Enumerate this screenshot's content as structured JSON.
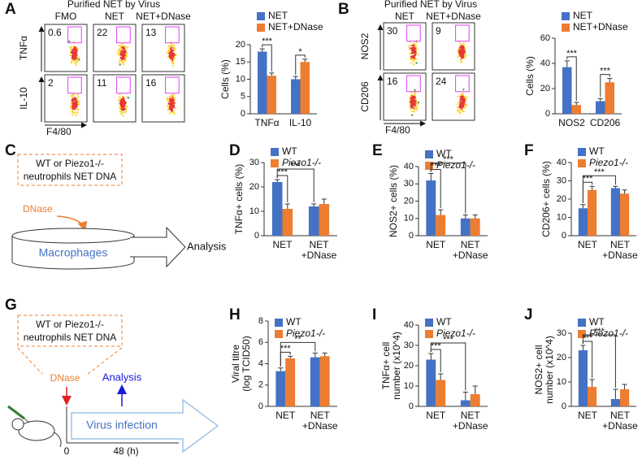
{
  "panel_labels": [
    "A",
    "B",
    "C",
    "D",
    "E",
    "F",
    "G",
    "H",
    "I",
    "J"
  ],
  "flow_panels": [
    {
      "title": "Purified NET by Virus",
      "columns": [
        "FMO",
        "NET",
        "NET+DNase"
      ],
      "rows": [
        "TNFα",
        "IL-10"
      ],
      "x_label": "F4/80",
      "values": [
        [
          0.6,
          22,
          13
        ],
        [
          2,
          11,
          16
        ]
      ]
    },
    {
      "title": "Purified NET by Virus",
      "columns": [
        "NET",
        "NET+DNase"
      ],
      "rows": [
        "NOS2",
        "CD206"
      ],
      "x_label": "F4/80",
      "values": [
        [
          30,
          9
        ],
        [
          16,
          24
        ]
      ]
    }
  ],
  "diagrams": {
    "c": {
      "box": [
        "WT or Piezo1-/-",
        "neutrophils NET DNA"
      ],
      "treatment": "DNase",
      "cells": "Macrophages",
      "readout": "Analysis"
    },
    "g": {
      "box": [
        "WT or Piezo1-/-",
        "neutrophils NET DNA"
      ],
      "treatment": "DNase",
      "readout": "Analysis",
      "process": "Virus infection",
      "start": "0",
      "end": "48 (h)"
    }
  },
  "chart_data": [
    {
      "type": "bar",
      "ylabel": [
        "Cells (%)"
      ],
      "categories": [
        [
          "TNFα"
        ],
        [
          "IL-10"
        ]
      ],
      "ylim": [
        0,
        20
      ],
      "yticks": [
        0,
        5,
        10,
        15,
        20
      ],
      "series": [
        {
          "name": "NET",
          "color": "#4472c4",
          "values": [
            18,
            10
          ],
          "errors": [
            0.8,
            0.8
          ]
        },
        {
          "name": "NET+DNase",
          "color": "#ed7d31",
          "values": [
            11,
            15
          ],
          "errors": [
            0.8,
            0.8
          ]
        }
      ],
      "comparisons": [
        {
          "label": "***",
          "from": [
            0,
            0
          ],
          "to": [
            1,
            0
          ]
        },
        {
          "label": "*",
          "from": [
            0,
            1
          ],
          "to": [
            1,
            1
          ]
        }
      ]
    },
    {
      "type": "bar",
      "ylabel": [
        "Cells (%)"
      ],
      "categories": [
        [
          "NOS2"
        ],
        [
          "CD206"
        ]
      ],
      "ylim": [
        0,
        60
      ],
      "yticks": [
        0,
        20,
        40,
        60
      ],
      "series": [
        {
          "name": "NET",
          "color": "#4472c4",
          "values": [
            37,
            10
          ],
          "errors": [
            5,
            2
          ]
        },
        {
          "name": "NET+DNase",
          "color": "#ed7d31",
          "values": [
            7,
            25
          ],
          "errors": [
            2,
            3
          ]
        }
      ],
      "comparisons": [
        {
          "label": "***",
          "from": [
            0,
            0
          ],
          "to": [
            1,
            0
          ]
        },
        {
          "label": "***",
          "from": [
            0,
            1
          ],
          "to": [
            1,
            1
          ]
        }
      ]
    },
    {
      "type": "bar",
      "ylabel": [
        "TNFα+ cells (%)"
      ],
      "categories": [
        [
          "NET"
        ],
        [
          "NET",
          "+DNase"
        ]
      ],
      "ylim": [
        0,
        30
      ],
      "yticks": [
        0,
        10,
        20,
        30
      ],
      "series": [
        {
          "name": "WT",
          "color": "#4472c4",
          "values": [
            22,
            12
          ],
          "errors": [
            1,
            1
          ]
        },
        {
          "name": "Piezo1-/-",
          "color": "#ed7d31",
          "values": [
            11,
            13
          ],
          "errors": [
            2,
            2
          ]
        }
      ],
      "comparisons": [
        {
          "label": "***",
          "from": [
            0,
            0
          ],
          "to": [
            1,
            0
          ]
        },
        {
          "label": "***",
          "from": [
            0,
            0
          ],
          "to": [
            0,
            1
          ]
        }
      ]
    },
    {
      "type": "bar",
      "ylabel": [
        "NOS2+ cells (%)"
      ],
      "categories": [
        [
          "NET"
        ],
        [
          "NET",
          "+DNase"
        ]
      ],
      "ylim": [
        0,
        40
      ],
      "yticks": [
        0,
        10,
        20,
        30,
        40
      ],
      "series": [
        {
          "name": "WT",
          "color": "#4472c4",
          "values": [
            32,
            10
          ],
          "errors": [
            4,
            2
          ]
        },
        {
          "name": "Piezo1-/-",
          "color": "#ed7d31",
          "values": [
            12,
            10
          ],
          "errors": [
            3,
            2
          ]
        }
      ],
      "comparisons": [
        {
          "label": "***",
          "from": [
            0,
            0
          ],
          "to": [
            1,
            0
          ]
        },
        {
          "label": "***",
          "from": [
            0,
            0
          ],
          "to": [
            0,
            1
          ]
        }
      ]
    },
    {
      "type": "bar",
      "ylabel": [
        "CD206+ cells (%)"
      ],
      "categories": [
        [
          "NET"
        ],
        [
          "NET",
          "+DNase"
        ]
      ],
      "ylim": [
        0,
        40
      ],
      "yticks": [
        0,
        10,
        20,
        30,
        40
      ],
      "series": [
        {
          "name": "WT",
          "color": "#4472c4",
          "values": [
            15,
            26
          ],
          "errors": [
            2,
            1
          ]
        },
        {
          "name": "Piezo1-/-",
          "color": "#ed7d31",
          "values": [
            25,
            23
          ],
          "errors": [
            2,
            2
          ]
        }
      ],
      "comparisons": [
        {
          "label": "***",
          "from": [
            0,
            0
          ],
          "to": [
            1,
            0
          ]
        },
        {
          "label": "***",
          "from": [
            0,
            0
          ],
          "to": [
            0,
            1
          ]
        }
      ]
    },
    {
      "type": "bar",
      "ylabel": [
        "Viral titre",
        "(log TCID50)"
      ],
      "categories": [
        [
          "NET"
        ],
        [
          "NET",
          "+DNase"
        ]
      ],
      "ylim": [
        0,
        8
      ],
      "yticks": [
        0,
        2,
        4,
        6,
        8
      ],
      "series": [
        {
          "name": "WT",
          "color": "#4472c4",
          "values": [
            3.3,
            4.6
          ],
          "errors": [
            0.3,
            0.4
          ]
        },
        {
          "name": "Piezo1-/-",
          "color": "#ed7d31",
          "values": [
            4.5,
            4.7
          ],
          "errors": [
            0.2,
            0.3
          ]
        }
      ],
      "comparisons": [
        {
          "label": "***",
          "from": [
            0,
            0
          ],
          "to": [
            1,
            0
          ]
        },
        {
          "label": "**",
          "from": [
            0,
            0
          ],
          "to": [
            0,
            1
          ]
        }
      ]
    },
    {
      "type": "bar",
      "ylabel": [
        "TNFα+ cell",
        "number (x10^4)"
      ],
      "categories": [
        [
          "NET"
        ],
        [
          "NET",
          "+DNase"
        ]
      ],
      "ylim": [
        0,
        40
      ],
      "yticks": [
        0,
        10,
        20,
        30,
        40
      ],
      "series": [
        {
          "name": "WT",
          "color": "#4472c4",
          "values": [
            23,
            3
          ],
          "errors": [
            3,
            4
          ]
        },
        {
          "name": "Piezo1-/-",
          "color": "#ed7d31",
          "values": [
            13,
            6
          ],
          "errors": [
            3,
            4
          ]
        }
      ],
      "comparisons": [
        {
          "label": "***",
          "from": [
            0,
            0
          ],
          "to": [
            1,
            0
          ]
        },
        {
          "label": "***",
          "from": [
            0,
            0
          ],
          "to": [
            0,
            1
          ]
        }
      ]
    },
    {
      "type": "bar",
      "ylabel": [
        "NOS2+ cell",
        "number (x10^4)"
      ],
      "categories": [
        [
          "NET"
        ],
        [
          "NET",
          "+DNase"
        ]
      ],
      "ylim": [
        0,
        30
      ],
      "yticks": [
        0,
        10,
        20,
        30
      ],
      "series": [
        {
          "name": "WT",
          "color": "#4472c4",
          "values": [
            23,
            3
          ],
          "errors": [
            2,
            4
          ]
        },
        {
          "name": "Piezo1-/-",
          "color": "#ed7d31",
          "values": [
            8,
            7
          ],
          "errors": [
            3,
            2
          ]
        }
      ],
      "comparisons": [
        {
          "label": "***",
          "from": [
            0,
            0
          ],
          "to": [
            1,
            0
          ]
        },
        {
          "label": "***",
          "from": [
            0,
            0
          ],
          "to": [
            0,
            1
          ]
        }
      ]
    }
  ]
}
